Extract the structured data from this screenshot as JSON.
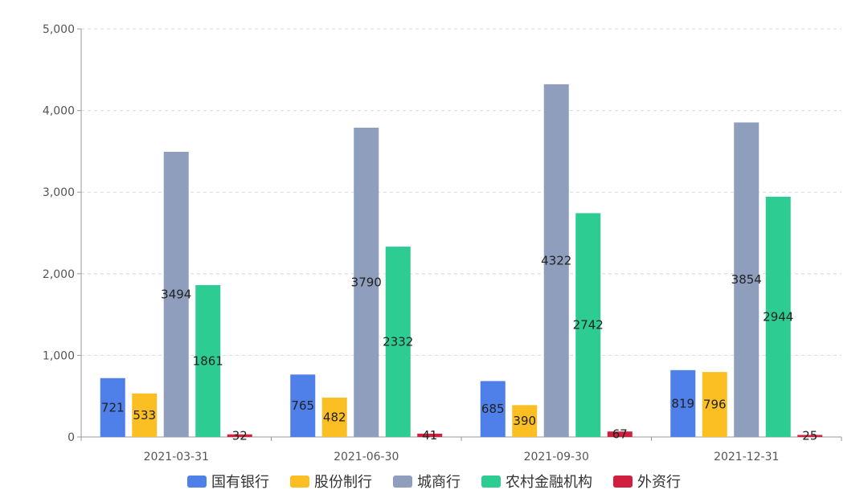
{
  "chart_data": {
    "type": "bar",
    "categories": [
      "2021-03-31",
      "2021-06-30",
      "2021-09-30",
      "2021-12-31"
    ],
    "series": [
      {
        "name": "国有银行",
        "color": "#4f7fe8",
        "values": [
          721,
          765,
          685,
          819
        ]
      },
      {
        "name": "股份制行",
        "color": "#fbbf24",
        "values": [
          533,
          482,
          390,
          796
        ]
      },
      {
        "name": "城商行",
        "color": "#8f9ebd",
        "values": [
          3494,
          3790,
          4322,
          3854
        ]
      },
      {
        "name": "农村金融机构",
        "color": "#2ccc93",
        "values": [
          1861,
          2332,
          2742,
          2944
        ]
      },
      {
        "name": "外资行",
        "color": "#d11f3f",
        "values": [
          32,
          41,
          67,
          25
        ]
      }
    ],
    "ylim": [
      0,
      5000
    ],
    "yticks": [
      "0",
      "1,000",
      "2,000",
      "3,000",
      "4,000",
      "5,000"
    ],
    "grid": true,
    "legend_position": "bottom"
  }
}
